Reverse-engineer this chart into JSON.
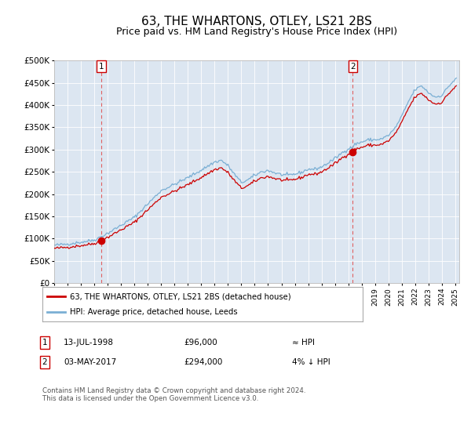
{
  "title": "63, THE WHARTONS, OTLEY, LS21 2BS",
  "subtitle": "Price paid vs. HM Land Registry's House Price Index (HPI)",
  "title_fontsize": 11,
  "subtitle_fontsize": 9,
  "background_color": "#dce6f1",
  "hpi_color": "#7aafd4",
  "price_color": "#cc0000",
  "marker_color": "#cc0000",
  "vline_color": "#e06060",
  "ylim": [
    0,
    500000
  ],
  "yticks": [
    0,
    50000,
    100000,
    150000,
    200000,
    250000,
    300000,
    350000,
    400000,
    450000,
    500000
  ],
  "ytick_labels": [
    "£0",
    "£50K",
    "£100K",
    "£150K",
    "£200K",
    "£250K",
    "£300K",
    "£350K",
    "£400K",
    "£450K",
    "£500K"
  ],
  "sale1_price": 96000,
  "sale1_x": 1998.53,
  "sale2_price": 294000,
  "sale2_x": 2017.34,
  "legend_label1": "63, THE WHARTONS, OTLEY, LS21 2BS (detached house)",
  "legend_label2": "HPI: Average price, detached house, Leeds",
  "note1_date": "13-JUL-1998",
  "note1_price": "£96,000",
  "note1_rel": "≈ HPI",
  "note2_date": "03-MAY-2017",
  "note2_price": "£294,000",
  "note2_rel": "4% ↓ HPI",
  "footer": "Contains HM Land Registry data © Crown copyright and database right 2024.\nThis data is licensed under the Open Government Licence v3.0."
}
